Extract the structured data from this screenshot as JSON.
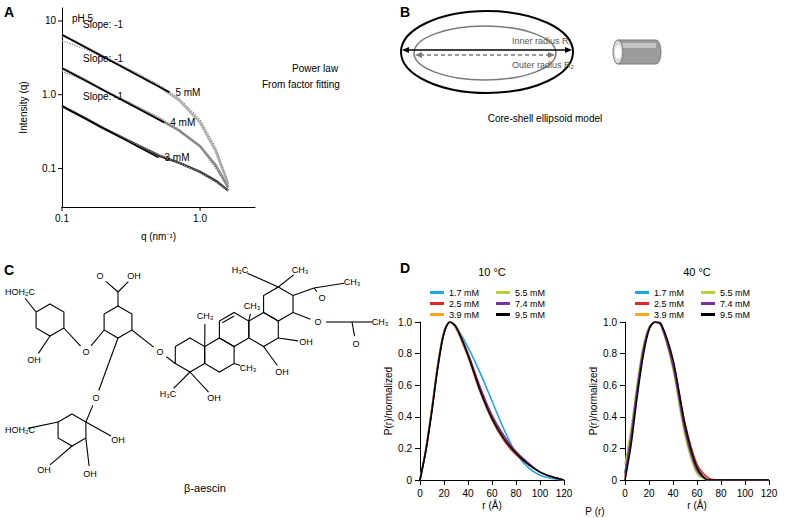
{
  "panel_labels": [
    "A",
    "B",
    "C",
    "D"
  ],
  "chart_data": [
    {
      "type": "line",
      "annotations": [
        "pH 5",
        "Power law",
        "From factor fitting"
      ],
      "x_label": "q (nm⁻¹)",
      "y_label": "Intensity (q)",
      "log": true,
      "grid": false,
      "xlim": [
        0.1,
        2.5
      ],
      "ylim": [
        0.03,
        15
      ],
      "xticks": [
        0.1,
        {
          "value": 1,
          "label": "1.0"
        }
      ],
      "yticks": [
        0.1,
        {
          "value": 1,
          "label": "1.0"
        },
        10
      ],
      "x": [
        0.1,
        0.15,
        0.2,
        0.3,
        0.5,
        0.7,
        1.0,
        1.3,
        1.6
      ],
      "series": [
        {
          "name": "5 mM",
          "color": "#b4b4b4",
          "values": [
            6.5,
            4.4,
            3.3,
            2.2,
            1.3,
            0.85,
            0.42,
            0.17,
            0.06
          ]
        },
        {
          "name": "4 mM",
          "color": "#8a8a8a",
          "values": [
            2.3,
            1.55,
            1.15,
            0.78,
            0.47,
            0.33,
            0.2,
            0.11,
            0.055
          ]
        },
        {
          "name": "3 mM",
          "color": "#333333",
          "values": [
            0.7,
            0.47,
            0.35,
            0.24,
            0.15,
            0.12,
            0.09,
            0.068,
            0.05
          ]
        }
      ],
      "fits": [
        {
          "curve": "5 mM",
          "color": "#8c8c8c",
          "line_style": "dotted",
          "values": [
            5.4,
            4.1,
            3.2,
            2.25,
            1.38,
            0.9,
            0.46,
            0.19,
            0.065
          ]
        },
        {
          "curve": "4 mM",
          "color": "#8c8c8c",
          "line_style": "dotted",
          "values": [
            2.1,
            1.5,
            1.15,
            0.8,
            0.5,
            0.34,
            0.2,
            0.1,
            0.055
          ]
        },
        {
          "curve": "3 mM",
          "color": "#8c8c8c",
          "line_style": "dotted",
          "values": [
            0.68,
            0.47,
            0.35,
            0.24,
            0.155,
            0.12,
            0.088,
            0.066,
            0.05
          ]
        }
      ],
      "power_law": [
        {
          "curve": "5 mM",
          "label": "Slope: -1",
          "color": "#000000",
          "line_style": "solid",
          "x": [
            0.1,
            0.6
          ],
          "values": [
            6.5,
            1.08
          ]
        },
        {
          "curve": "4 mM",
          "label": "Slope: -1",
          "color": "#000000",
          "line_style": "solid",
          "x": [
            0.1,
            0.55
          ],
          "values": [
            2.3,
            0.42
          ]
        },
        {
          "curve": "3 mM",
          "label": "Slope: -1",
          "color": "#000000",
          "line_style": "solid",
          "x": [
            0.1,
            0.5
          ],
          "values": [
            0.7,
            0.14
          ]
        }
      ]
    },
    {
      "type": "line",
      "title": "10 °C",
      "x_label": "r (Å)",
      "y_label": "P(r)/normalized",
      "grid": false,
      "legend": "top",
      "xlim": [
        0,
        120
      ],
      "ylim": [
        0,
        1
      ],
      "xticks": [
        0,
        20,
        40,
        60,
        80,
        100,
        120
      ],
      "yticks": [
        0,
        0.2,
        0.4,
        0.6,
        0.8,
        {
          "value": 1,
          "label": "1.0"
        }
      ],
      "x": [
        0,
        5,
        10,
        15,
        20,
        25,
        30,
        40,
        50,
        60,
        70,
        80,
        90,
        100,
        110,
        120
      ],
      "series": [
        {
          "name": "1.7 mM",
          "color": "#1fa6e6",
          "values": [
            0,
            0.2,
            0.45,
            0.72,
            0.93,
            1.0,
            0.97,
            0.84,
            0.68,
            0.5,
            0.32,
            0.17,
            0.08,
            0.03,
            0.01,
            0
          ]
        },
        {
          "name": "2.5 mM",
          "color": "#e3262b",
          "values": [
            0,
            0.2,
            0.46,
            0.74,
            0.94,
            1.0,
            0.96,
            0.78,
            0.56,
            0.38,
            0.25,
            0.16,
            0.1,
            0.05,
            0.02,
            0
          ]
        },
        {
          "name": "3.9 mM",
          "color": "#f5a623",
          "values": [
            0,
            0.2,
            0.46,
            0.74,
            0.94,
            1.0,
            0.96,
            0.79,
            0.57,
            0.39,
            0.26,
            0.17,
            0.1,
            0.05,
            0.02,
            0
          ]
        },
        {
          "name": "5.5 mM",
          "color": "#b5d334",
          "values": [
            0,
            0.19,
            0.45,
            0.73,
            0.93,
            1.0,
            0.97,
            0.8,
            0.58,
            0.4,
            0.27,
            0.17,
            0.1,
            0.05,
            0.02,
            0
          ]
        },
        {
          "name": "7.4 mM",
          "color": "#7b2fa0",
          "values": [
            0,
            0.19,
            0.45,
            0.73,
            0.93,
            1.0,
            0.97,
            0.8,
            0.59,
            0.41,
            0.28,
            0.18,
            0.11,
            0.05,
            0.02,
            0
          ]
        },
        {
          "name": "9.5 mM",
          "color": "#000000",
          "values": [
            0,
            0.19,
            0.44,
            0.72,
            0.93,
            1.0,
            0.97,
            0.79,
            0.57,
            0.39,
            0.26,
            0.17,
            0.1,
            0.05,
            0.02,
            0
          ]
        }
      ]
    },
    {
      "type": "line",
      "title": "40 °C",
      "x_label": "r (Å)",
      "y_label": "P(r)/normalized",
      "grid": false,
      "legend": "top",
      "xlim": [
        0,
        120
      ],
      "ylim": [
        0,
        1
      ],
      "xticks": [
        0,
        20,
        40,
        60,
        80,
        100,
        120
      ],
      "yticks": [
        0,
        0.2,
        0.4,
        0.6,
        0.8,
        {
          "value": 1,
          "label": "1.0"
        }
      ],
      "x": [
        0,
        5,
        10,
        15,
        20,
        25,
        30,
        40,
        50,
        60,
        70,
        80,
        90,
        100,
        110,
        120
      ],
      "series": [
        {
          "name": "1.7 mM",
          "color": "#1fa6e6",
          "values": [
            0.05,
            0.3,
            0.58,
            0.82,
            0.96,
            1.0,
            0.98,
            0.72,
            0.3,
            0.05,
            0,
            0,
            0,
            0,
            0,
            0
          ]
        },
        {
          "name": "2.5 mM",
          "color": "#e3262b",
          "values": [
            0.02,
            0.25,
            0.55,
            0.8,
            0.96,
            1.0,
            0.98,
            0.75,
            0.36,
            0.1,
            0.01,
            0,
            0,
            0,
            0,
            0
          ]
        },
        {
          "name": "3.9 mM",
          "color": "#f5a623",
          "values": [
            0.03,
            0.27,
            0.56,
            0.81,
            0.96,
            1.0,
            0.98,
            0.74,
            0.34,
            0.08,
            0,
            0,
            0,
            0,
            0,
            0
          ]
        },
        {
          "name": "5.5 mM",
          "color": "#b5d334",
          "values": [
            0.1,
            0.32,
            0.6,
            0.84,
            0.97,
            1.0,
            0.98,
            0.7,
            0.28,
            0.04,
            0,
            0,
            0,
            0,
            0,
            0
          ]
        },
        {
          "name": "7.4 mM",
          "color": "#7b2fa0",
          "values": [
            0.04,
            0.28,
            0.57,
            0.82,
            0.96,
            1.0,
            0.98,
            0.72,
            0.31,
            0.06,
            0,
            0,
            0,
            0,
            0,
            0
          ]
        },
        {
          "name": "9.5 mM",
          "color": "#000000",
          "values": [
            0,
            0.22,
            0.52,
            0.78,
            0.95,
            1.0,
            0.99,
            0.76,
            0.35,
            0.08,
            0,
            0,
            0,
            0,
            0,
            0
          ]
        }
      ]
    }
  ],
  "panel_d_caption": "P (r)",
  "panel_b": {
    "inner_label": "Inner radius R₁",
    "outer_label": "Outer radius R₂",
    "caption": "Core-shell ellipsoid model"
  },
  "panel_c": {
    "name": "β-aescin",
    "atom_labels": [
      "H₃C",
      "CH₃",
      "O",
      "CH₃",
      "O",
      "O",
      "CH₃",
      "CH₃",
      "CH₃",
      "CH₃",
      "OH",
      "OH",
      "H₃C",
      "OH",
      "O",
      "O",
      "OH",
      "O",
      "HOH₂C",
      "OH",
      "O",
      "HOH₂C",
      "OH",
      "OH",
      "OH"
    ]
  }
}
